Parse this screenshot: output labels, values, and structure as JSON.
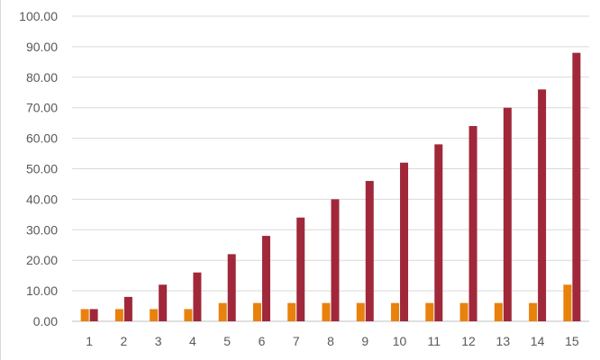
{
  "chart_data": {
    "type": "bar",
    "title": "",
    "xlabel": "",
    "ylabel": "",
    "ylim": [
      0,
      100
    ],
    "y_ticks": [
      "0.00",
      "10.00",
      "20.00",
      "30.00",
      "40.00",
      "50.00",
      "60.00",
      "70.00",
      "80.00",
      "90.00",
      "100.00"
    ],
    "categories": [
      "1",
      "2",
      "3",
      "4",
      "5",
      "6",
      "7",
      "8",
      "9",
      "10",
      "11",
      "12",
      "13",
      "14",
      "15"
    ],
    "grid": true,
    "legend": "none",
    "series": [
      {
        "color": "#E8820C",
        "values": [
          4,
          4,
          4,
          4,
          6,
          6,
          6,
          6,
          6,
          6,
          6,
          6,
          6,
          6,
          12
        ]
      },
      {
        "color": "#A0283A",
        "values": [
          4,
          8,
          12,
          16,
          22,
          28,
          34,
          40,
          46,
          52,
          58,
          64,
          70,
          76,
          88
        ]
      }
    ]
  }
}
